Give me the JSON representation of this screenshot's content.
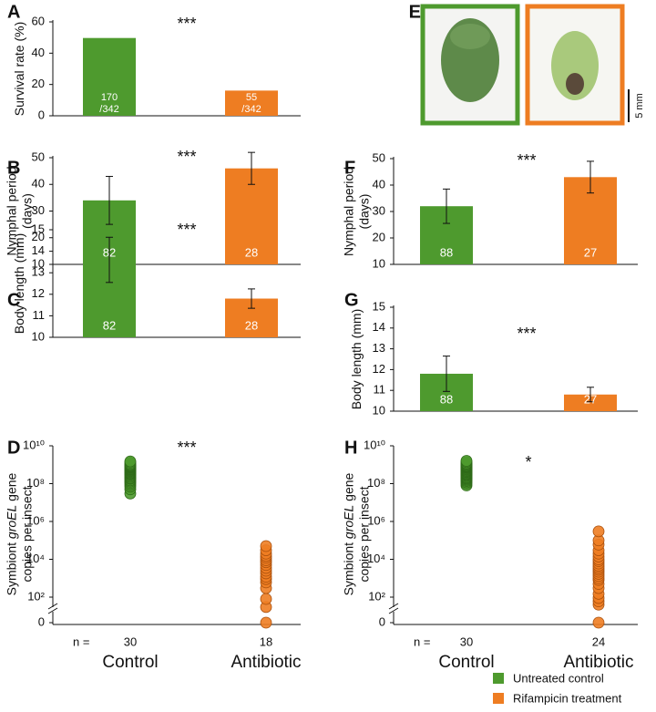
{
  "chart_data": [
    {
      "type": "bar",
      "panel": "A",
      "ylabel": [
        [
          "Survival rate (%)"
        ]
      ],
      "values": [
        49.7,
        16.1
      ],
      "value_labels": [
        [
          "170",
          "/342"
        ],
        [
          "55",
          "/342"
        ]
      ],
      "colors": [
        "#4e9a2e",
        "#ee7d22"
      ],
      "ylim": [
        0,
        60
      ],
      "yticks": [
        0,
        20,
        40,
        60
      ],
      "annotation": "***"
    },
    {
      "type": "bar",
      "panel": "B",
      "ylabel": [
        [
          "Nymphal period"
        ],
        [
          "(days)"
        ]
      ],
      "values": [
        34,
        46
      ],
      "errors": [
        9,
        6
      ],
      "n": [
        82,
        28
      ],
      "colors": [
        "#4e9a2e",
        "#ee7d22"
      ],
      "ylim": [
        10,
        50
      ],
      "yticks": [
        10,
        20,
        30,
        40,
        50
      ],
      "annotation": "***"
    },
    {
      "type": "bar",
      "panel": "C",
      "ylabel": [
        [
          "Body length (mm)"
        ]
      ],
      "values": [
        13.6,
        11.8
      ],
      "errors": [
        1.05,
        0.45
      ],
      "n": [
        82,
        28
      ],
      "colors": [
        "#4e9a2e",
        "#ee7d22"
      ],
      "ylim": [
        10,
        15
      ],
      "yticks": [
        10,
        11,
        12,
        13,
        14,
        15
      ],
      "annotation": "***"
    },
    {
      "type": "scatter",
      "panel": "D",
      "yscale": "log",
      "axis_break": true,
      "ylabel": [
        [
          "Symbiont ",
          "groEL",
          " gene"
        ],
        [
          "copies per insect"
        ]
      ],
      "categories": [
        "Control",
        "Antibiotic"
      ],
      "n_label": "n =",
      "n": [
        30,
        18
      ],
      "colors": [
        "#4e9a2e",
        "#ee7d22"
      ],
      "values": [
        [
          30000000.0,
          50000000.0,
          70000000.0,
          90000000.0,
          110000000.0,
          130000000.0,
          150000000.0,
          180000000.0,
          200000000.0,
          230000000.0,
          260000000.0,
          300000000.0,
          330000000.0,
          360000000.0,
          400000000.0,
          440000000.0,
          480000000.0,
          520000000.0,
          560000000.0,
          600000000.0,
          650000000.0,
          700000000.0,
          750000000.0,
          800000000.0,
          850000000.0,
          900000000.0,
          1000000000.0,
          1100000000.0,
          1300000000.0,
          1500000000.0
        ],
        [
          0,
          30,
          80,
          300,
          600,
          900,
          1200,
          1800,
          2500,
          3500,
          5000,
          7000,
          9000,
          12000,
          15000,
          20000,
          30000,
          50000
        ]
      ],
      "ylim": [
        0,
        10000000000.0
      ],
      "yticks": [
        0,
        {
          "value": 100,
          "label": "10²"
        },
        {
          "value": 10000,
          "label": "10⁴"
        },
        {
          "value": 1000000,
          "label": "10⁶"
        },
        {
          "value": 100000000,
          "label": "10⁸"
        },
        {
          "value": 10000000000,
          "label": "10¹⁰"
        }
      ],
      "annotation": "***"
    },
    {
      "type": "bar",
      "panel": "F",
      "ylabel": [
        [
          "Nymphal period"
        ],
        [
          "(days)"
        ]
      ],
      "values": [
        32,
        43
      ],
      "errors": [
        6.5,
        6
      ],
      "n": [
        88,
        27
      ],
      "colors": [
        "#4e9a2e",
        "#ee7d22"
      ],
      "ylim": [
        10,
        50
      ],
      "yticks": [
        10,
        20,
        30,
        40,
        50
      ],
      "annotation": "***"
    },
    {
      "type": "bar",
      "panel": "G",
      "ylabel": [
        [
          "Body length (mm)"
        ]
      ],
      "values": [
        11.8,
        10.8
      ],
      "errors": [
        0.85,
        0.35
      ],
      "n": [
        88,
        27
      ],
      "colors": [
        "#4e9a2e",
        "#ee7d22"
      ],
      "ylim": [
        10,
        15
      ],
      "yticks": [
        10,
        11,
        12,
        13,
        14,
        15
      ],
      "annotation": "***"
    },
    {
      "type": "scatter",
      "panel": "H",
      "yscale": "log",
      "axis_break": true,
      "ylabel": [
        [
          "Symbiont ",
          "groEL",
          " gene"
        ],
        [
          "copies per insect"
        ]
      ],
      "categories": [
        "Control",
        "Antibiotic"
      ],
      "n_label": "n =",
      "n": [
        30,
        24
      ],
      "colors": [
        "#4e9a2e",
        "#ee7d22"
      ],
      "values": [
        [
          80000000.0,
          100000000.0,
          120000000.0,
          140000000.0,
          160000000.0,
          180000000.0,
          200000000.0,
          220000000.0,
          250000000.0,
          280000000.0,
          300000000.0,
          330000000.0,
          360000000.0,
          400000000.0,
          430000000.0,
          470000000.0,
          500000000.0,
          550000000.0,
          600000000.0,
          650000000.0,
          700000000.0,
          750000000.0,
          800000000.0,
          850000000.0,
          900000000.0,
          1000000000.0,
          1100000000.0,
          1200000000.0,
          1400000000.0,
          1600000000.0
        ],
        [
          0,
          40,
          60,
          90,
          150,
          300,
          500,
          800,
          1000,
          1300,
          1700,
          2200,
          2800,
          3500,
          4500,
          6000,
          8000,
          10000,
          14000,
          20000,
          30000,
          60000,
          100000,
          300000
        ]
      ],
      "ylim": [
        0,
        10000000000.0
      ],
      "yticks": [
        0,
        {
          "value": 100,
          "label": "10²"
        },
        {
          "value": 10000,
          "label": "10⁴"
        },
        {
          "value": 1000000,
          "label": "10⁶"
        },
        {
          "value": 100000000,
          "label": "10⁸"
        },
        {
          "value": 10000000000,
          "label": "10¹⁰"
        }
      ],
      "annotation": "*"
    }
  ],
  "panel_e": {
    "panel": "E",
    "scale": "5 mm"
  },
  "legend": [
    {
      "name": "Untreated control",
      "color": "#4e9a2e"
    },
    {
      "name": "Rifampicin treatment",
      "color": "#ee7d22"
    }
  ]
}
